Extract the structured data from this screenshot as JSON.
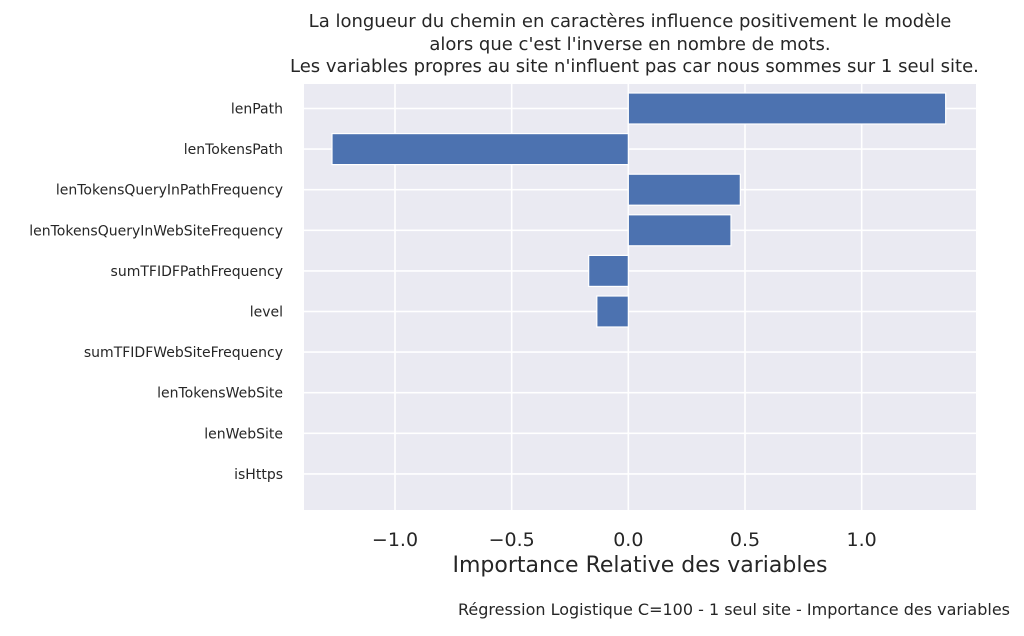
{
  "chart_data": {
    "type": "bar",
    "orientation": "horizontal",
    "title_lines": [
      "La longueur du chemin en caractères influence positivement le modèle",
      "alors que c'est l'inverse en nombre de mots.",
      "Les variables propres au site n'influent pas car nous sommes sur 1 seul site."
    ],
    "categories": [
      "lenPath",
      "lenTokensPath",
      "lenTokensQueryInPathFrequency",
      "lenTokensQueryInWebSiteFrequency",
      "sumTFIDFPathFrequency",
      "level",
      "sumTFIDFWebSiteFrequency",
      "lenTokensWebSite",
      "lenWebSite",
      "isHttps"
    ],
    "values": [
      1.36,
      -1.27,
      0.48,
      0.44,
      -0.17,
      -0.135,
      0,
      0,
      0,
      0
    ],
    "xlabel": "Importance Relative des variables",
    "ylabel": "",
    "xlim": [
      -1.39,
      1.49
    ],
    "xticks": [
      -1.0,
      -0.5,
      0.0,
      0.5,
      1.0
    ],
    "xtick_labels": [
      "−1.0",
      "−0.5",
      "0.0",
      "0.5",
      "1.0"
    ],
    "grid": true,
    "bar_color": "#4c72b0",
    "background_color": "#eaeaf2"
  },
  "caption": "Régression Logistique C=100 - 1 seul site - Importance des variables"
}
